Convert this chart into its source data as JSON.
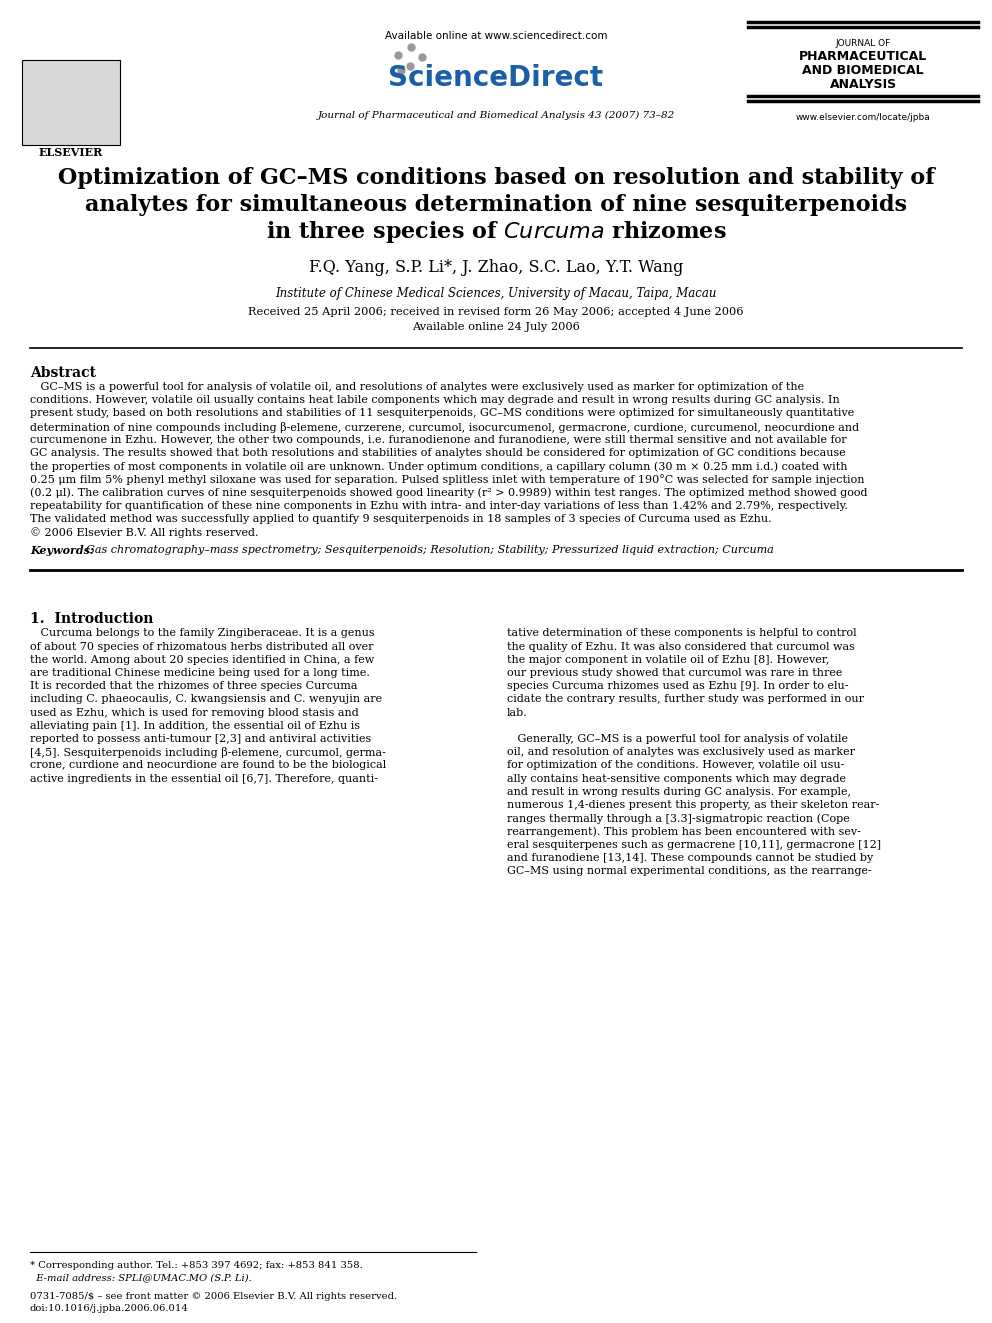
{
  "bg_color": "#ffffff",
  "header": {
    "available_online": "Available online at www.sciencedirect.com",
    "journal_name_top": "JOURNAL OF",
    "journal_name_1": "PHARMACEUTICAL",
    "journal_name_2": "AND BIOMEDICAL",
    "journal_name_3": "ANALYSIS",
    "journal_info": "Journal of Pharmaceutical and Biomedical Analysis 43 (2007) 73–82",
    "website": "www.elsevier.com/locate/jpba"
  },
  "title_line1": "Optimization of GC–MS conditions based on resolution and stability of",
  "title_line2": "analytes for simultaneous determination of nine sesquiterpenoids",
  "title_line3_normal": "in three species of ",
  "title_line3_italic": "Curcuma",
  "title_line3_end": " rhizomes",
  "authors": "F.Q. Yang, S.P. Li*, J. Zhao, S.C. Lao, Y.T. Wang",
  "affiliation": "Institute of Chinese Medical Sciences, University of Macau, Taipa, Macau",
  "dates": "Received 25 April 2006; received in revised form 26 May 2006; accepted 4 June 2006",
  "available_online_date": "Available online 24 July 2006",
  "abstract_title": "Abstract",
  "keywords_label": "Keywords:",
  "keywords_text": "  Gas chromatography–mass spectrometry; Sesquiterpenoids; Resolution; Stability; Pressurized liquid extraction; Curcuma",
  "footer_issn": "0731-7085/$ – see front matter © 2006 Elsevier B.V. All rights reserved.",
  "footer_doi": "doi:10.1016/j.jpba.2006.06.014",
  "footer_corr1": "* Corresponding author. Tel.: +853 397 4692; fax: +853 841 358.",
  "footer_corr2": "  E-mail address: SPLI@UMAC.MO (S.P. Li).",
  "abstract_lines": [
    "   GC–MS is a powerful tool for analysis of volatile oil, and resolutions of analytes were exclusively used as marker for optimization of the",
    "conditions. However, volatile oil usually contains heat labile components which may degrade and result in wrong results during GC analysis. In",
    "present study, based on both resolutions and stabilities of 11 sesquiterpenoids, GC–MS conditions were optimized for simultaneously quantitative",
    "determination of nine compounds including β-elemene, curzerene, curcumol, isocurcumenol, germacrone, curdione, curcumenol, neocurdione and",
    "curcumenone in Ezhu. However, the other two compounds, i.e. furanodienone and furanodiene, were still thermal sensitive and not available for",
    "GC analysis. The results showed that both resolutions and stabilities of analytes should be considered for optimization of GC conditions because",
    "the properties of most components in volatile oil are unknown. Under optimum conditions, a capillary column (30 m × 0.25 mm i.d.) coated with",
    "0.25 μm film 5% phenyl methyl siloxane was used for separation. Pulsed splitless inlet with temperature of 190°C was selected for sample injection",
    "(0.2 μl). The calibration curves of nine sesquiterpenoids showed good linearity (r² > 0.9989) within test ranges. The optimized method showed good",
    "repeatability for quantification of these nine components in Ezhu with intra- and inter-day variations of less than 1.42% and 2.79%, respectively.",
    "The validated method was successfully applied to quantify 9 sesquiterpenoids in 18 samples of 3 species of Curcuma used as Ezhu.",
    "© 2006 Elsevier B.V. All rights reserved."
  ],
  "col1_lines": [
    "   Curcuma belongs to the family Zingiberaceae. It is a genus",
    "of about 70 species of rhizomatous herbs distributed all over",
    "the world. Among about 20 species identified in China, a few",
    "are traditional Chinese medicine being used for a long time.",
    "It is recorded that the rhizomes of three species Curcuma",
    "including C. phaeocaulis, C. kwangsiensis and C. wenyujin are",
    "used as Ezhu, which is used for removing blood stasis and",
    "alleviating pain [1]. In addition, the essential oil of Ezhu is",
    "reported to possess anti-tumour [2,3] and antiviral activities",
    "[4,5]. Sesquiterpenoids including β-elemene, curcumol, germa-",
    "crone, curdione and neocurdione are found to be the biological",
    "active ingredients in the essential oil [6,7]. Therefore, quanti-"
  ],
  "col2_lines": [
    "tative determination of these components is helpful to control",
    "the quality of Ezhu. It was also considered that curcumol was",
    "the major component in volatile oil of Ezhu [8]. However,",
    "our previous study showed that curcumol was rare in three",
    "species Curcuma rhizomes used as Ezhu [9]. In order to elu-",
    "cidate the contrary results, further study was performed in our",
    "lab.",
    "",
    "   Generally, GC–MS is a powerful tool for analysis of volatile",
    "oil, and resolution of analytes was exclusively used as marker",
    "for optimization of the conditions. However, volatile oil usu-",
    "ally contains heat-sensitive components which may degrade",
    "and result in wrong results during GC analysis. For example,",
    "numerous 1,4-dienes present this property, as their skeleton rear-",
    "ranges thermally through a [3.3]-sigmatropic reaction (Cope",
    "rearrangement). This problem has been encountered with sev-",
    "eral sesquiterpenes such as germacrene [10,11], germacrone [12]",
    "and furanodiene [13,14]. These compounds cannot be studied by",
    "GC–MS using normal experimental conditions, as the rearrange-"
  ]
}
